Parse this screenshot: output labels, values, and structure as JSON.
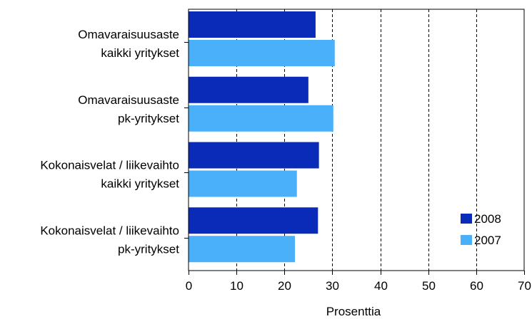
{
  "chart_data": {
    "type": "bar",
    "orientation": "horizontal",
    "categories": [
      [
        "Omavaraisuusaste",
        "kaikki yritykset"
      ],
      [
        "Omavaraisuusaste",
        "pk-yritykset"
      ],
      [
        "Kokonaisvelat / liikevaihto",
        "kaikki  yritykset"
      ],
      [
        "Kokonaisvelat / liikevaihto",
        "pk-yritykset"
      ]
    ],
    "series": [
      {
        "name": "2008",
        "color": "#0a2bb8",
        "values": [
          26.5,
          25.0,
          27.2,
          27.0
        ]
      },
      {
        "name": "2007",
        "color": "#4ab0fa",
        "values": [
          30.5,
          30.2,
          22.6,
          22.2
        ]
      }
    ],
    "xlabel": "Prosenttia",
    "xlim": [
      0,
      70
    ],
    "ticks": [
      "0",
      "10",
      "20",
      "30",
      "40",
      "50",
      "60",
      "70"
    ],
    "grid": "dashed vertical",
    "legend_position": "bottom-right"
  }
}
